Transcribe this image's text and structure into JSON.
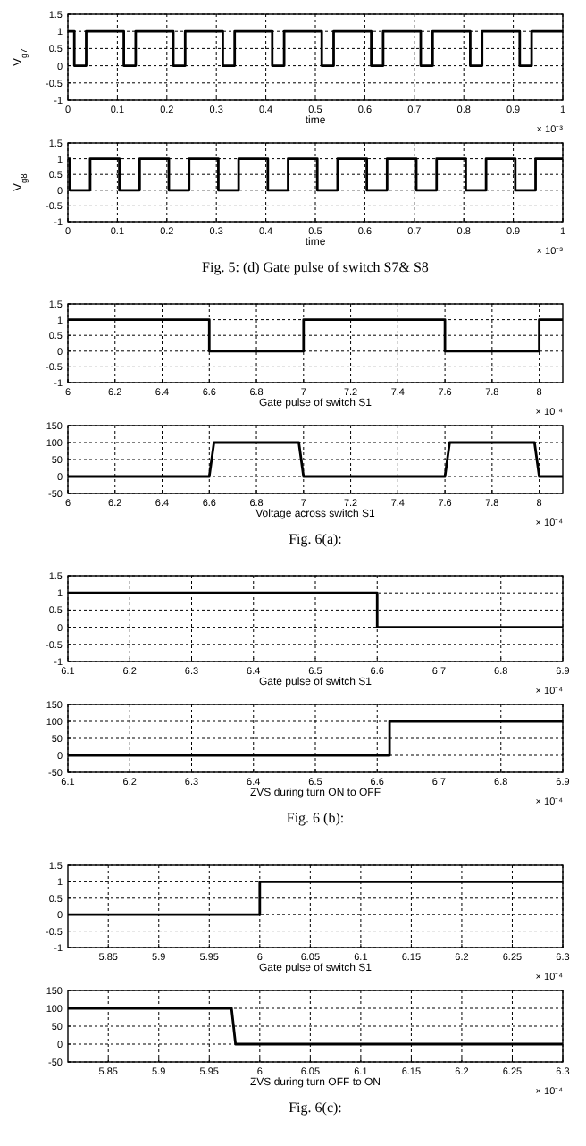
{
  "chart_data": [
    {
      "type": "step",
      "ylabel": "V$_{g7}$",
      "xlabel": "time",
      "annotations": [
        "× 10⁻³"
      ],
      "xlim": [
        0,
        1
      ],
      "xticks": [
        0,
        0.1,
        0.2,
        0.3,
        0.4,
        0.5,
        0.6,
        0.7,
        0.8,
        0.9,
        1
      ],
      "ylim": [
        -1,
        1.5
      ],
      "yticks": [
        -1,
        -0.5,
        0,
        0.5,
        1,
        1.5
      ],
      "grid": true,
      "series": [
        {
          "color": "#000000",
          "x": [
            0,
            0.013,
            0.037,
            0.113,
            0.137,
            0.213,
            0.237,
            0.313,
            0.337,
            0.413,
            0.437,
            0.513,
            0.537,
            0.613,
            0.637,
            0.713,
            0.737,
            0.813,
            0.837,
            0.913,
            0.937,
            1
          ],
          "values": [
            1,
            0,
            1,
            0,
            1,
            0,
            1,
            0,
            1,
            0,
            1,
            0,
            1,
            0,
            1,
            0,
            1,
            0,
            1,
            0,
            1,
            1
          ]
        }
      ]
    },
    {
      "type": "step",
      "ylabel": "V$_{g8}$",
      "xlabel": "time",
      "annotations": [
        "× 10⁻³",
        "Fig. 5: (d) Gate pulse of switch S7& S8"
      ],
      "xlim": [
        0,
        1
      ],
      "xticks": [
        0,
        0.1,
        0.2,
        0.3,
        0.4,
        0.5,
        0.6,
        0.7,
        0.8,
        0.9,
        1
      ],
      "ylim": [
        -1,
        1.5
      ],
      "yticks": [
        -1,
        -0.5,
        0,
        0.5,
        1,
        1.5
      ],
      "grid": true,
      "series": [
        {
          "color": "#000000",
          "x": [
            0,
            0.004,
            0.045,
            0.104,
            0.145,
            0.204,
            0.245,
            0.304,
            0.345,
            0.404,
            0.445,
            0.504,
            0.545,
            0.604,
            0.645,
            0.704,
            0.745,
            0.804,
            0.845,
            0.904,
            0.945,
            1
          ],
          "values": [
            1,
            0,
            1,
            0,
            1,
            0,
            1,
            0,
            1,
            0,
            1,
            0,
            1,
            0,
            1,
            0,
            1,
            0,
            1,
            0,
            1,
            1
          ]
        }
      ]
    },
    {
      "type": "step",
      "xlabel": "Gate pulse of switch S1",
      "annotations": [
        "× 10⁻⁴"
      ],
      "xlim": [
        6,
        8.1
      ],
      "xticks": [
        6,
        6.2,
        6.4,
        6.6,
        6.8,
        7,
        7.2,
        7.4,
        7.6,
        7.8,
        8
      ],
      "ylim": [
        -1,
        1.5
      ],
      "yticks": [
        -1,
        -0.5,
        0,
        0.5,
        1,
        1.5
      ],
      "grid": true,
      "series": [
        {
          "color": "#000000",
          "x": [
            6,
            6.6,
            7,
            7.6,
            8,
            8.1
          ],
          "values": [
            1,
            0,
            1,
            0,
            1,
            1
          ]
        }
      ]
    },
    {
      "type": "line",
      "xlabel": "Voltage across switch S1",
      "annotations": [
        "× 10⁻⁴",
        "Fig. 6(a):"
      ],
      "xlim": [
        6,
        8.1
      ],
      "xticks": [
        6,
        6.2,
        6.4,
        6.6,
        6.8,
        7,
        7.2,
        7.4,
        7.6,
        7.8,
        8
      ],
      "ylim": [
        -50,
        150
      ],
      "yticks": [
        -50,
        0,
        50,
        100,
        150
      ],
      "grid": true,
      "series": [
        {
          "color": "#000000",
          "x": [
            6,
            6.6,
            6.62,
            6.98,
            7,
            7.6,
            7.62,
            7.98,
            8,
            8.1
          ],
          "values": [
            0,
            0,
            100,
            100,
            0,
            0,
            100,
            100,
            0,
            0
          ]
        }
      ]
    },
    {
      "type": "step",
      "xlabel": "Gate pulse of switch S1",
      "annotations": [
        "× 10⁻⁴"
      ],
      "xlim": [
        6.1,
        6.9
      ],
      "xticks": [
        6.1,
        6.2,
        6.3,
        6.4,
        6.5,
        6.6,
        6.7,
        6.8,
        6.9
      ],
      "ylim": [
        -1,
        1.5
      ],
      "yticks": [
        -1,
        -0.5,
        0,
        0.5,
        1,
        1.5
      ],
      "grid": true,
      "series": [
        {
          "color": "#000000",
          "x": [
            6.1,
            6.6,
            6.9
          ],
          "values": [
            1,
            0,
            0
          ]
        }
      ]
    },
    {
      "type": "step",
      "xlabel": "ZVS during turn ON to OFF",
      "annotations": [
        "× 10⁻⁴",
        "Fig. 6 (b):"
      ],
      "xlim": [
        6.1,
        6.9
      ],
      "xticks": [
        6.1,
        6.2,
        6.3,
        6.4,
        6.5,
        6.6,
        6.7,
        6.8,
        6.9
      ],
      "ylim": [
        -50,
        150
      ],
      "yticks": [
        -50,
        0,
        50,
        100,
        150
      ],
      "grid": true,
      "series": [
        {
          "color": "#000000",
          "x": [
            6.1,
            6.62,
            6.9
          ],
          "values": [
            0,
            100,
            100
          ]
        }
      ]
    },
    {
      "type": "step",
      "xlabel": "Gate pulse of switch S1",
      "annotations": [
        "× 10⁻⁴"
      ],
      "xlim": [
        5.81,
        6.3
      ],
      "xticks": [
        5.85,
        5.9,
        5.95,
        6,
        6.05,
        6.1,
        6.15,
        6.2,
        6.25,
        6.3
      ],
      "ylim": [
        -1,
        1.5
      ],
      "yticks": [
        -1,
        -0.5,
        0,
        0.5,
        1,
        1.5
      ],
      "grid": true,
      "series": [
        {
          "color": "#000000",
          "x": [
            5.81,
            6,
            6.3
          ],
          "values": [
            0,
            1,
            1
          ]
        }
      ]
    },
    {
      "type": "line",
      "xlabel": "ZVS during turn OFF to ON",
      "annotations": [
        "× 10⁻⁴",
        "Fig. 6(c):"
      ],
      "xlim": [
        5.81,
        6.3
      ],
      "xticks": [
        5.85,
        5.9,
        5.95,
        6,
        6.05,
        6.1,
        6.15,
        6.2,
        6.25,
        6.3
      ],
      "ylim": [
        -50,
        150
      ],
      "yticks": [
        -50,
        0,
        50,
        100,
        150
      ],
      "grid": true,
      "series": [
        {
          "color": "#000000",
          "x": [
            5.81,
            5.972,
            5.976,
            6.3
          ],
          "values": [
            100,
            100,
            0,
            0
          ]
        }
      ]
    }
  ]
}
